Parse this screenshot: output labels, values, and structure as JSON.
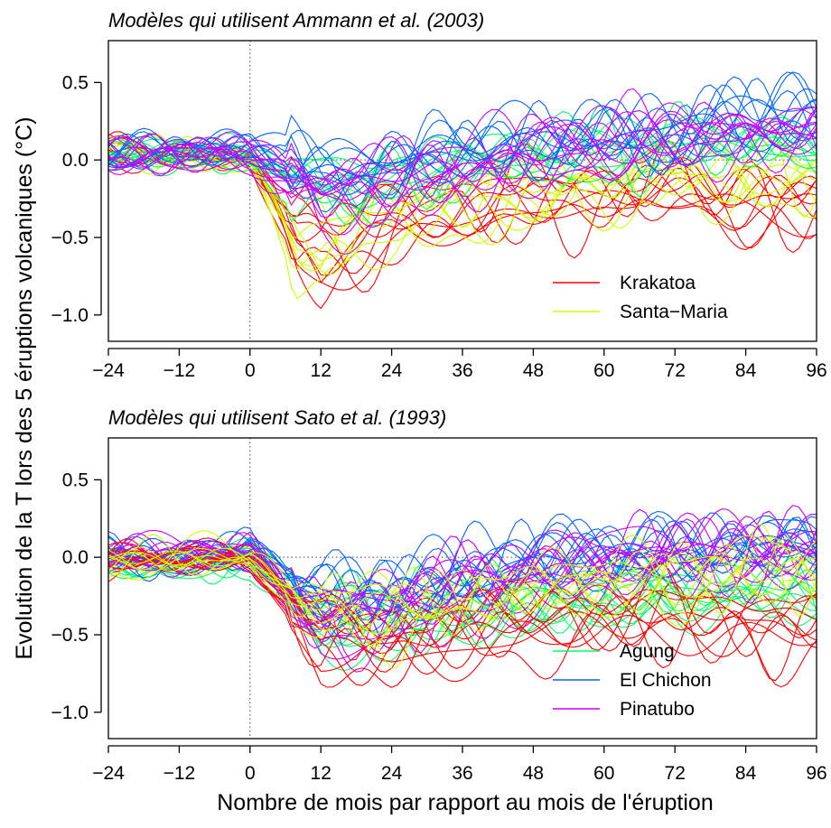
{
  "figure": {
    "ylabel": "Evolution de la T lors des 5 éruptions volcaniques (°C)",
    "xlabel": "Nombre de mois par rapport au mois de l'éruption"
  },
  "chart_data": [
    {
      "type": "line",
      "title": "Modèles qui utilisent Ammann et al. (2003)",
      "xlim": [
        -24,
        96
      ],
      "ylim": [
        -1.17,
        0.77
      ],
      "xticks": [
        -24,
        -12,
        0,
        12,
        24,
        36,
        48,
        60,
        72,
        84,
        96
      ],
      "xtick_labels": [
        "−24",
        "−12",
        "0",
        "12",
        "24",
        "36",
        "48",
        "60",
        "72",
        "84",
        "96"
      ],
      "yticks": [
        -1.0,
        -0.5,
        0.0,
        0.5
      ],
      "ytick_labels": [
        "−1.0",
        "−0.5",
        "0.0",
        "0.5"
      ],
      "vline_x": 0,
      "hline_y": 0,
      "legend_position": "bottom-right",
      "series": [
        {
          "name": "Krakatoa",
          "color": "#ff0000",
          "count": 10,
          "keypoints": [
            [
              -24,
              0.02
            ],
            [
              -12,
              0.02
            ],
            [
              -3,
              0.02
            ],
            [
              0,
              0.0
            ],
            [
              4,
              -0.22
            ],
            [
              8,
              -0.5
            ],
            [
              12,
              -0.62
            ],
            [
              18,
              -0.52
            ],
            [
              24,
              -0.42
            ],
            [
              36,
              -0.32
            ],
            [
              48,
              -0.28
            ],
            [
              60,
              -0.24
            ],
            [
              72,
              -0.22
            ],
            [
              84,
              -0.3
            ],
            [
              96,
              -0.28
            ]
          ]
        },
        {
          "name": "Santa−Maria",
          "color": "#ccff00",
          "count": 8,
          "keypoints": [
            [
              -24,
              0.03
            ],
            [
              -12,
              0.03
            ],
            [
              -3,
              0.02
            ],
            [
              0,
              0.0
            ],
            [
              4,
              -0.25
            ],
            [
              8,
              -0.55
            ],
            [
              12,
              -0.62
            ],
            [
              16,
              -0.55
            ],
            [
              24,
              -0.38
            ],
            [
              36,
              -0.3
            ],
            [
              48,
              -0.22
            ],
            [
              60,
              -0.18
            ],
            [
              72,
              -0.15
            ],
            [
              84,
              -0.15
            ],
            [
              96,
              -0.1
            ]
          ]
        },
        {
          "name": "",
          "color": "#00ff66",
          "count": 10,
          "keypoints": [
            [
              -24,
              0.02
            ],
            [
              -12,
              0.02
            ],
            [
              -3,
              0.02
            ],
            [
              0,
              0.0
            ],
            [
              6,
              -0.12
            ],
            [
              12,
              -0.22
            ],
            [
              24,
              -0.16
            ],
            [
              36,
              -0.08
            ],
            [
              48,
              -0.02
            ],
            [
              60,
              0.02
            ],
            [
              72,
              0.05
            ],
            [
              84,
              0.05
            ],
            [
              96,
              0.05
            ]
          ]
        },
        {
          "name": "",
          "color": "#0066ff",
          "count": 10,
          "keypoints": [
            [
              -24,
              0.03
            ],
            [
              -12,
              0.05
            ],
            [
              -3,
              0.05
            ],
            [
              0,
              0.06
            ],
            [
              6,
              -0.05
            ],
            [
              12,
              -0.15
            ],
            [
              24,
              -0.08
            ],
            [
              36,
              0.0
            ],
            [
              48,
              0.05
            ],
            [
              60,
              0.1
            ],
            [
              72,
              0.12
            ],
            [
              84,
              0.18
            ],
            [
              96,
              0.2
            ]
          ]
        },
        {
          "name": "",
          "color": "#cc00ff",
          "count": 12,
          "keypoints": [
            [
              -24,
              0.02
            ],
            [
              -12,
              0.03
            ],
            [
              -3,
              0.03
            ],
            [
              0,
              0.02
            ],
            [
              6,
              -0.15
            ],
            [
              12,
              -0.28
            ],
            [
              24,
              -0.2
            ],
            [
              36,
              -0.1
            ],
            [
              48,
              -0.03
            ],
            [
              60,
              0.03
            ],
            [
              72,
              0.08
            ],
            [
              84,
              0.12
            ],
            [
              96,
              0.12
            ]
          ]
        }
      ]
    },
    {
      "type": "line",
      "title": "Modèles qui utilisent Sato et al. (1993)",
      "xlim": [
        -24,
        96
      ],
      "ylim": [
        -1.17,
        0.77
      ],
      "xticks": [
        -24,
        -12,
        0,
        12,
        24,
        36,
        48,
        60,
        72,
        84,
        96
      ],
      "xtick_labels": [
        "−24",
        "−12",
        "0",
        "12",
        "24",
        "36",
        "48",
        "60",
        "72",
        "84",
        "96"
      ],
      "yticks": [
        -1.0,
        -0.5,
        0.0,
        0.5
      ],
      "ytick_labels": [
        "−1.0",
        "−0.5",
        "0.0",
        "0.5"
      ],
      "vline_x": 0,
      "hline_y": 0,
      "legend_position": "bottom-right",
      "series": [
        {
          "name": "Agung",
          "color": "#00ff66",
          "count": 12,
          "keypoints": [
            [
              -24,
              0.0
            ],
            [
              -12,
              -0.02
            ],
            [
              -3,
              0.0
            ],
            [
              0,
              0.02
            ],
            [
              6,
              -0.12
            ],
            [
              12,
              -0.28
            ],
            [
              24,
              -0.3
            ],
            [
              36,
              -0.25
            ],
            [
              48,
              -0.2
            ],
            [
              60,
              -0.15
            ],
            [
              72,
              -0.12
            ],
            [
              84,
              -0.12
            ],
            [
              96,
              -0.1
            ]
          ]
        },
        {
          "name": "El Chichon",
          "color": "#0066ff",
          "count": 12,
          "keypoints": [
            [
              -24,
              0.02
            ],
            [
              -12,
              0.03
            ],
            [
              -3,
              0.05
            ],
            [
              0,
              0.08
            ],
            [
              6,
              -0.05
            ],
            [
              12,
              -0.2
            ],
            [
              24,
              -0.15
            ],
            [
              36,
              -0.02
            ],
            [
              48,
              0.08
            ],
            [
              60,
              0.12
            ],
            [
              72,
              0.12
            ],
            [
              84,
              0.18
            ],
            [
              96,
              0.15
            ]
          ]
        },
        {
          "name": "Pinatubo",
          "color": "#cc00ff",
          "count": 14,
          "keypoints": [
            [
              -24,
              0.02
            ],
            [
              -12,
              0.03
            ],
            [
              -3,
              0.05
            ],
            [
              0,
              0.04
            ],
            [
              6,
              -0.15
            ],
            [
              12,
              -0.3
            ],
            [
              24,
              -0.25
            ],
            [
              36,
              -0.12
            ],
            [
              48,
              -0.02
            ],
            [
              60,
              0.05
            ],
            [
              72,
              0.1
            ],
            [
              84,
              0.12
            ],
            [
              96,
              0.1
            ]
          ]
        },
        {
          "name": "",
          "color": "#ff0000",
          "count": 10,
          "keypoints": [
            [
              -24,
              0.02
            ],
            [
              -12,
              0.0
            ],
            [
              -3,
              0.02
            ],
            [
              0,
              0.0
            ],
            [
              6,
              -0.2
            ],
            [
              12,
              -0.42
            ],
            [
              24,
              -0.45
            ],
            [
              36,
              -0.38
            ],
            [
              48,
              -0.32
            ],
            [
              60,
              -0.3
            ],
            [
              72,
              -0.3
            ],
            [
              84,
              -0.32
            ],
            [
              96,
              -0.32
            ]
          ]
        },
        {
          "name": "",
          "color": "#ccff00",
          "count": 8,
          "keypoints": [
            [
              -24,
              0.02
            ],
            [
              -12,
              0.0
            ],
            [
              -3,
              0.0
            ],
            [
              0,
              0.0
            ],
            [
              6,
              -0.12
            ],
            [
              12,
              -0.25
            ],
            [
              24,
              -0.28
            ],
            [
              36,
              -0.2
            ],
            [
              48,
              -0.12
            ],
            [
              60,
              -0.08
            ],
            [
              72,
              -0.05
            ],
            [
              84,
              -0.02
            ],
            [
              96,
              0.0
            ]
          ]
        }
      ]
    }
  ]
}
